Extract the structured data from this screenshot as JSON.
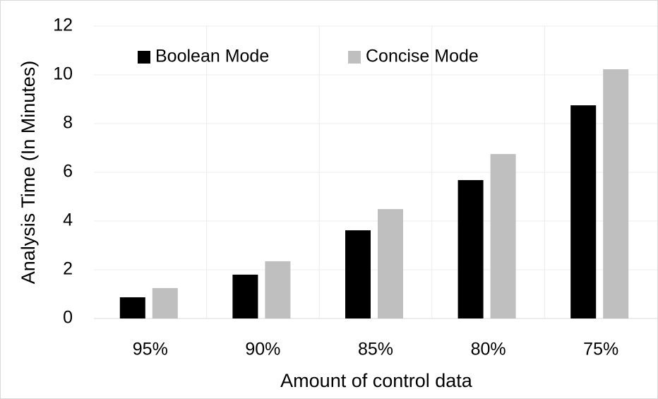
{
  "chart_data": {
    "type": "bar",
    "xlabel": "Amount of control data",
    "ylabel": "Analysis Time (In Minutes)",
    "categories": [
      "95%",
      "90%",
      "85%",
      "80%",
      "75%"
    ],
    "series": [
      {
        "name": "Boolean Mode",
        "color": "#000000",
        "values": [
          0.87,
          1.8,
          3.62,
          5.68,
          8.75
        ]
      },
      {
        "name": "Concise Mode",
        "color": "#bfbfbf",
        "values": [
          1.25,
          2.35,
          4.49,
          6.75,
          10.23
        ]
      }
    ],
    "ylim": [
      0,
      12
    ],
    "yticks": [
      0,
      2,
      4,
      6,
      8,
      10,
      12
    ],
    "grid": true,
    "legend": "top-left"
  }
}
